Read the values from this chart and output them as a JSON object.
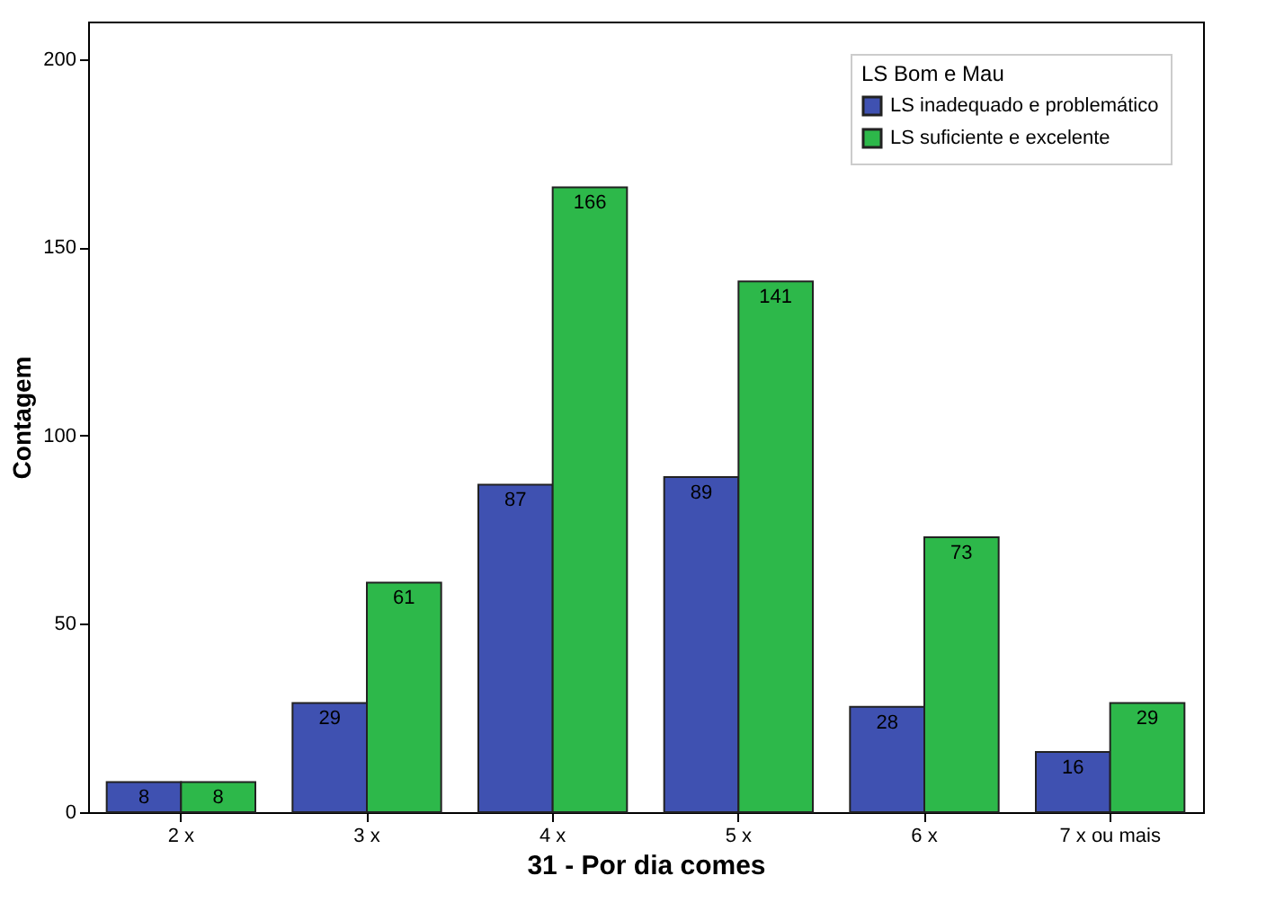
{
  "chart_data": {
    "type": "bar",
    "xlabel": "31 - Por dia comes",
    "ylabel": "Contagem",
    "legend_title": "LS Bom e Mau",
    "categories": [
      "2 x",
      "3 x",
      "4 x",
      "5 x",
      "6 x",
      "7 x ou mais"
    ],
    "series": [
      {
        "name": "LS inadequado e problemático",
        "color": "#3f51b1",
        "values": [
          8,
          29,
          87,
          89,
          28,
          16
        ]
      },
      {
        "name": "LS suficiente e excelente",
        "color": "#2db84a",
        "values": [
          8,
          61,
          166,
          141,
          73,
          29
        ]
      }
    ],
    "ylim": [
      0,
      210
    ],
    "yticks": [
      0,
      50,
      100,
      150,
      200
    ],
    "data_labels": true,
    "legend": "top right",
    "grid": false
  }
}
